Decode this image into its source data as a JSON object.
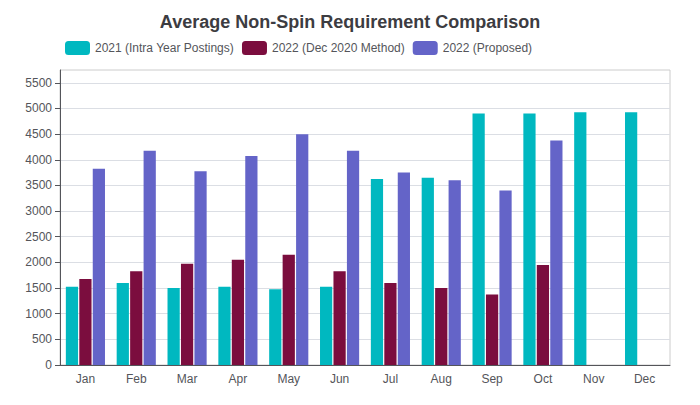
{
  "chart_data": {
    "type": "bar",
    "title": "Average Non-Spin Requirement Comparison",
    "categories": [
      "Jan",
      "Feb",
      "Mar",
      "Apr",
      "May",
      "Jun",
      "Jul",
      "Aug",
      "Sep",
      "Oct",
      "Nov",
      "Dec"
    ],
    "series": [
      {
        "name": "2021 (Intra Year Postings)",
        "color": "#00B8C0",
        "values": [
          1525,
          1600,
          1500,
          1525,
          1475,
          1525,
          3625,
          3650,
          4900,
          4900,
          4925,
          4925
        ]
      },
      {
        "name": "2022 (Dec 2020 Method)",
        "color": "#7B0D3E",
        "values": [
          1675,
          1825,
          1975,
          2050,
          2150,
          1825,
          1600,
          1500,
          1375,
          1950,
          0,
          0
        ]
      },
      {
        "name": "2022 (Proposed)",
        "color": "#6464C8",
        "values": [
          3825,
          4175,
          3775,
          4075,
          4500,
          4175,
          3750,
          3600,
          3400,
          4375,
          0,
          0
        ]
      }
    ],
    "ylim": [
      0,
      5750
    ],
    "yticks": [
      0,
      500,
      1000,
      1500,
      2000,
      2500,
      3000,
      3500,
      4000,
      4500,
      5000,
      5500
    ],
    "grid": true,
    "legend": "upper left"
  }
}
